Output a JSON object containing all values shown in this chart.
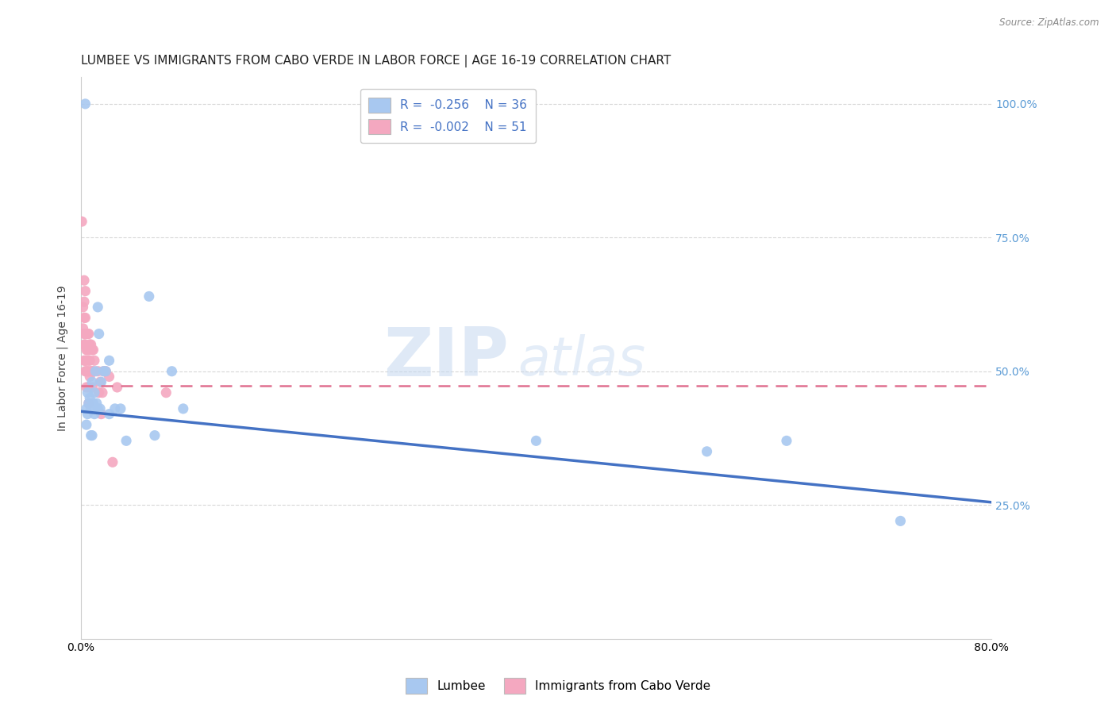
{
  "title": "LUMBEE VS IMMIGRANTS FROM CABO VERDE IN LABOR FORCE | AGE 16-19 CORRELATION CHART",
  "source": "Source: ZipAtlas.com",
  "ylabel": "In Labor Force | Age 16-19",
  "xlim": [
    0.0,
    0.8
  ],
  "ylim": [
    0.0,
    1.05
  ],
  "ytick_labels_right": [
    "100.0%",
    "75.0%",
    "50.0%",
    "25.0%"
  ],
  "ytick_positions_right": [
    1.0,
    0.75,
    0.5,
    0.25
  ],
  "watermark_zip": "ZIP",
  "watermark_atlas": "atlas",
  "legend_r1": "-0.256",
  "legend_n1": "36",
  "legend_r2": "-0.002",
  "legend_n2": "51",
  "lumbee_color": "#a8c8f0",
  "cabo_verde_color": "#f4a8c0",
  "lumbee_line_color": "#4472c4",
  "cabo_verde_line_color": "#e07090",
  "background_color": "#ffffff",
  "grid_color": "#d8d8d8",
  "lumbee_x": [
    0.004,
    0.005,
    0.005,
    0.006,
    0.006,
    0.007,
    0.008,
    0.009,
    0.009,
    0.01,
    0.01,
    0.011,
    0.012,
    0.012,
    0.013,
    0.014,
    0.015,
    0.015,
    0.016,
    0.017,
    0.018,
    0.02,
    0.022,
    0.025,
    0.025,
    0.03,
    0.035,
    0.04,
    0.06,
    0.065,
    0.08,
    0.09,
    0.4,
    0.55,
    0.62,
    0.72
  ],
  "lumbee_y": [
    1.0,
    0.43,
    0.4,
    0.46,
    0.42,
    0.44,
    0.45,
    0.43,
    0.38,
    0.48,
    0.38,
    0.44,
    0.46,
    0.42,
    0.5,
    0.44,
    0.62,
    0.43,
    0.57,
    0.43,
    0.48,
    0.5,
    0.5,
    0.52,
    0.42,
    0.43,
    0.43,
    0.37,
    0.64,
    0.38,
    0.5,
    0.43,
    0.37,
    0.35,
    0.37,
    0.22
  ],
  "cabo_verde_x": [
    0.001,
    0.002,
    0.002,
    0.003,
    0.003,
    0.003,
    0.003,
    0.003,
    0.003,
    0.004,
    0.004,
    0.004,
    0.004,
    0.004,
    0.004,
    0.005,
    0.005,
    0.005,
    0.005,
    0.005,
    0.006,
    0.006,
    0.006,
    0.007,
    0.007,
    0.007,
    0.007,
    0.007,
    0.007,
    0.008,
    0.008,
    0.008,
    0.009,
    0.009,
    0.01,
    0.01,
    0.01,
    0.011,
    0.011,
    0.012,
    0.015,
    0.016,
    0.017,
    0.018,
    0.019,
    0.02,
    0.022,
    0.025,
    0.028,
    0.032,
    0.075
  ],
  "cabo_verde_y": [
    0.78,
    0.62,
    0.58,
    0.67,
    0.63,
    0.6,
    0.57,
    0.55,
    0.52,
    0.65,
    0.6,
    0.57,
    0.55,
    0.52,
    0.5,
    0.57,
    0.54,
    0.52,
    0.5,
    0.47,
    0.57,
    0.54,
    0.5,
    0.57,
    0.54,
    0.52,
    0.5,
    0.47,
    0.44,
    0.55,
    0.52,
    0.49,
    0.55,
    0.5,
    0.54,
    0.5,
    0.47,
    0.54,
    0.5,
    0.52,
    0.5,
    0.46,
    0.48,
    0.42,
    0.46,
    0.5,
    0.5,
    0.49,
    0.33,
    0.47,
    0.46
  ],
  "title_fontsize": 11,
  "axis_label_fontsize": 10,
  "tick_fontsize": 10,
  "marker_size": 90,
  "lumbee_trend_start_y": 0.425,
  "lumbee_trend_end_y": 0.255,
  "cabo_trend_y": 0.473
}
